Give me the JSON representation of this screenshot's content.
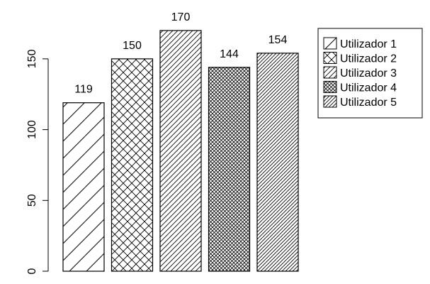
{
  "chart_data": {
    "type": "bar",
    "title": "",
    "xlabel": "",
    "ylabel": "",
    "categories": [
      "Utilizador 1",
      "Utilizador 2",
      "Utilizador 3",
      "Utilizador 4",
      "Utilizador 5"
    ],
    "values": [
      119,
      150,
      170,
      144,
      154
    ],
    "data_labels": [
      "119",
      "150",
      "170",
      "144",
      "154"
    ],
    "patterns": [
      "sparse-diagonal",
      "sparse-crosshatch",
      "dense-diagonal",
      "dense-crosshatch",
      "very-dense-diagonal"
    ],
    "ylim": [
      0,
      170
    ],
    "yticks": [
      0,
      50,
      100,
      150
    ],
    "ytick_labels": [
      "0",
      "50",
      "100",
      "150"
    ],
    "grid": false,
    "legend": {
      "placement": "top-right",
      "entries": [
        "Utilizador 1",
        "Utilizador 2",
        "Utilizador 3",
        "Utilizador 4",
        "Utilizador 5"
      ]
    },
    "colors": {
      "bar_stroke": "#000000",
      "background": "#ffffff"
    }
  }
}
